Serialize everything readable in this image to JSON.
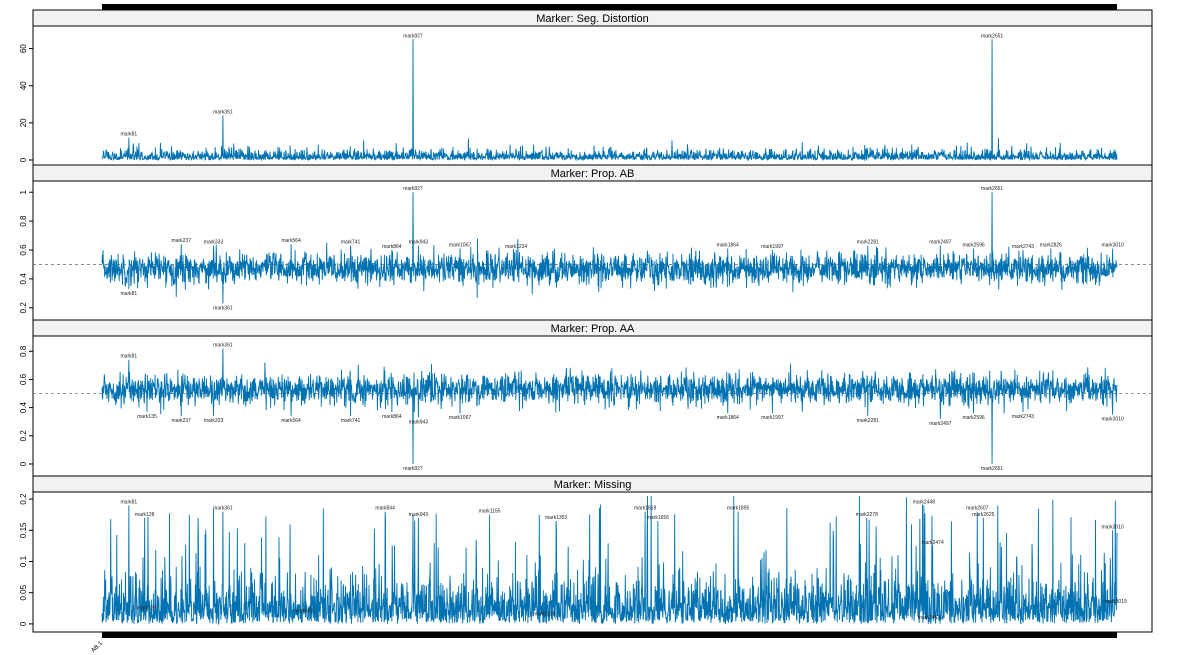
{
  "chart_data": [
    {
      "type": "line",
      "title": "Marker: Seg. Distortion",
      "ylim": [
        0,
        70
      ],
      "yticks": [
        0,
        20,
        40,
        60
      ],
      "reference_line": null,
      "series_color": "#0072B2",
      "n_markers": 3023,
      "labeled_points": [
        {
          "name": "mark81",
          "index": 80,
          "value": 12
        },
        {
          "name": "mark361",
          "index": 360,
          "value": 24
        },
        {
          "name": "mark927",
          "index": 926,
          "value": 65
        },
        {
          "name": "mark2651",
          "index": 2650,
          "value": 65
        }
      ]
    },
    {
      "type": "line",
      "title": "Marker: Prop. AB",
      "ylim": [
        0.15,
        1.05
      ],
      "yticks": [
        0.2,
        0.4,
        0.6,
        0.8,
        1.0
      ],
      "reference_line": 0.5,
      "series_color": "#0072B2",
      "n_markers": 3023,
      "labeled_points": [
        {
          "name": "mark81",
          "index": 80,
          "value": 0.33
        },
        {
          "name": "mark237",
          "index": 236,
          "value": 0.64
        },
        {
          "name": "mark333",
          "index": 332,
          "value": 0.63
        },
        {
          "name": "mark361",
          "index": 360,
          "value": 0.23
        },
        {
          "name": "mark564",
          "index": 563,
          "value": 0.64
        },
        {
          "name": "mark741",
          "index": 740,
          "value": 0.63
        },
        {
          "name": "mark864",
          "index": 863,
          "value": 0.6
        },
        {
          "name": "mark927",
          "index": 926,
          "value": 1.0
        },
        {
          "name": "mark943",
          "index": 942,
          "value": 0.63
        },
        {
          "name": "mark1067",
          "index": 1066,
          "value": 0.61
        },
        {
          "name": "mark1234",
          "index": 1233,
          "value": 0.6
        },
        {
          "name": "mark1864",
          "index": 1863,
          "value": 0.61
        },
        {
          "name": "mark1997",
          "index": 1996,
          "value": 0.6
        },
        {
          "name": "mark2281",
          "index": 2280,
          "value": 0.63
        },
        {
          "name": "mark2497",
          "index": 2496,
          "value": 0.63
        },
        {
          "name": "mark2596",
          "index": 2595,
          "value": 0.61
        },
        {
          "name": "mark2651",
          "index": 2650,
          "value": 1.0
        },
        {
          "name": "mark2743",
          "index": 2742,
          "value": 0.6
        },
        {
          "name": "mark2826",
          "index": 2825,
          "value": 0.61
        },
        {
          "name": "mark3010",
          "index": 3009,
          "value": 0.61
        }
      ]
    },
    {
      "type": "line",
      "title": "Marker: Prop. AA",
      "ylim": [
        -0.05,
        0.88
      ],
      "yticks": [
        0.0,
        0.2,
        0.4,
        0.6,
        0.8
      ],
      "reference_line": 0.5,
      "series_color": "#0072B2",
      "n_markers": 3023,
      "labeled_points": [
        {
          "name": "mark81",
          "index": 80,
          "value": 0.74
        },
        {
          "name": "mark135",
          "index": 134,
          "value": 0.37
        },
        {
          "name": "mark237",
          "index": 236,
          "value": 0.34
        },
        {
          "name": "mark333",
          "index": 332,
          "value": 0.34
        },
        {
          "name": "mark361",
          "index": 360,
          "value": 0.82
        },
        {
          "name": "mark564",
          "index": 563,
          "value": 0.34
        },
        {
          "name": "mark741",
          "index": 740,
          "value": 0.34
        },
        {
          "name": "mark864",
          "index": 863,
          "value": 0.37
        },
        {
          "name": "mark927",
          "index": 926,
          "value": 0.0
        },
        {
          "name": "mark943",
          "index": 942,
          "value": 0.33
        },
        {
          "name": "mark1067",
          "index": 1066,
          "value": 0.36
        },
        {
          "name": "mark1864",
          "index": 1863,
          "value": 0.36
        },
        {
          "name": "mark1997",
          "index": 1996,
          "value": 0.36
        },
        {
          "name": "mark2281",
          "index": 2280,
          "value": 0.34
        },
        {
          "name": "mark2497",
          "index": 2496,
          "value": 0.32
        },
        {
          "name": "mark2596",
          "index": 2595,
          "value": 0.36
        },
        {
          "name": "mark2651",
          "index": 2650,
          "value": 0.0
        },
        {
          "name": "mark2743",
          "index": 2742,
          "value": 0.37
        },
        {
          "name": "mark3010",
          "index": 3009,
          "value": 0.35
        }
      ]
    },
    {
      "type": "line",
      "title": "Marker: Missing",
      "ylim": [
        -0.005,
        0.205
      ],
      "yticks": [
        0.0,
        0.05,
        0.1,
        0.15,
        0.2
      ],
      "reference_line": null,
      "series_color": "#0072B2",
      "n_markers": 3023,
      "labeled_points": [
        {
          "name": "mark81",
          "index": 80,
          "value": 0.19
        },
        {
          "name": "mark128",
          "index": 127,
          "value": 0.17
        },
        {
          "name": "mark135",
          "index": 134,
          "value": 0.02
        },
        {
          "name": "mark361",
          "index": 360,
          "value": 0.18
        },
        {
          "name": "mark602",
          "index": 601,
          "value": 0.015
        },
        {
          "name": "mark844",
          "index": 843,
          "value": 0.18
        },
        {
          "name": "mark943",
          "index": 942,
          "value": 0.17
        },
        {
          "name": "mark1155",
          "index": 1154,
          "value": 0.175
        },
        {
          "name": "mark1318",
          "index": 1317,
          "value": 0.01
        },
        {
          "name": "mark1353",
          "index": 1352,
          "value": 0.165
        },
        {
          "name": "mark1618",
          "index": 1617,
          "value": 0.18
        },
        {
          "name": "mark1656",
          "index": 1655,
          "value": 0.165
        },
        {
          "name": "mark1895",
          "index": 1894,
          "value": 0.18
        },
        {
          "name": "mark2278",
          "index": 2277,
          "value": 0.17
        },
        {
          "name": "mark2448",
          "index": 2447,
          "value": 0.19
        },
        {
          "name": "mark2463",
          "index": 2462,
          "value": 0.005
        },
        {
          "name": "mark2474",
          "index": 2473,
          "value": 0.125
        },
        {
          "name": "mark2607",
          "index": 2606,
          "value": 0.18
        },
        {
          "name": "mark2625",
          "index": 2624,
          "value": 0.17
        },
        {
          "name": "mark3010",
          "index": 3009,
          "value": 0.15
        },
        {
          "name": "mark3019",
          "index": 3018,
          "value": 0.03
        }
      ]
    }
  ],
  "x_axis": {
    "tick_labels": [
      "AB.1"
    ],
    "n_markers": 3023
  }
}
